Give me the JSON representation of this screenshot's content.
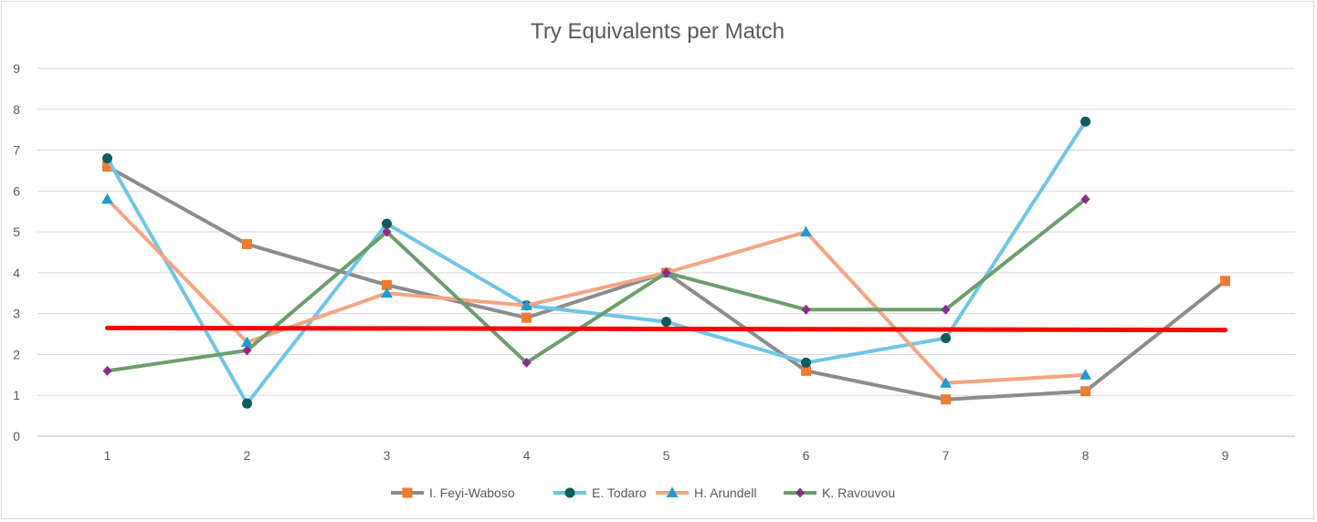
{
  "chart_data": {
    "type": "line",
    "title": "Try Equivalents per Match",
    "xlabel": "",
    "ylabel": "",
    "categories": [
      "1",
      "2",
      "3",
      "4",
      "5",
      "6",
      "7",
      "8",
      "9"
    ],
    "ylim": [
      0,
      9
    ],
    "yticks": [
      "0",
      "1",
      "2",
      "3",
      "4",
      "5",
      "6",
      "7",
      "8",
      "9"
    ],
    "grid": true,
    "legend_position": "bottom",
    "series": [
      {
        "name": "I. Feyi-Waboso",
        "values": [
          6.6,
          4.7,
          3.7,
          2.9,
          4.0,
          1.6,
          0.9,
          1.1,
          3.8
        ],
        "line_color": "#8c8c8c",
        "marker_color": "#ed7d31",
        "marker": "square"
      },
      {
        "name": "E. Todaro",
        "values": [
          6.8,
          0.8,
          5.2,
          3.2,
          2.8,
          1.8,
          2.4,
          7.7,
          null
        ],
        "line_color": "#70c5e8",
        "marker_color": "#0e5c5c",
        "marker": "circle"
      },
      {
        "name": "H. Arundell",
        "values": [
          5.8,
          2.3,
          3.5,
          3.2,
          4.0,
          5.0,
          1.3,
          1.5,
          null
        ],
        "line_color": "#f4a582",
        "marker_color": "#1f9bd4",
        "marker": "triangle"
      },
      {
        "name": "K. Ravouvou",
        "values": [
          1.6,
          2.1,
          5.0,
          1.8,
          4.0,
          3.1,
          3.1,
          5.8,
          null
        ],
        "line_color": "#6b9e6b",
        "marker_color": "#8e2a8e",
        "marker": "diamond"
      }
    ],
    "reference_line": {
      "start": 2.65,
      "end": 2.6,
      "color": "#ff0000"
    }
  }
}
